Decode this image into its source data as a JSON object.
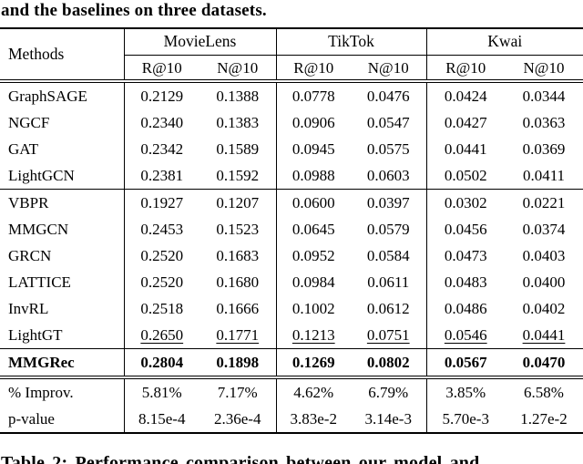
{
  "caption_top": "and the baselines on three datasets.",
  "caption_bottom": "Table 2: Performance comparison between our model and",
  "colors": {
    "text": "#000000",
    "background": "#ffffff",
    "rules": "#000000"
  },
  "table": {
    "methods_header": "Methods",
    "groups": [
      {
        "label": "MovieLens"
      },
      {
        "label": "TikTok"
      },
      {
        "label": "Kwai"
      }
    ],
    "subheaders": [
      "R@10",
      "N@10",
      "R@10",
      "N@10",
      "R@10",
      "N@10"
    ],
    "rows": [
      {
        "method": "GraphSAGE",
        "values": [
          "0.2129",
          "0.1388",
          "0.0778",
          "0.0476",
          "0.0424",
          "0.0344"
        ]
      },
      {
        "method": "NGCF",
        "values": [
          "0.2340",
          "0.1383",
          "0.0906",
          "0.0547",
          "0.0427",
          "0.0363"
        ]
      },
      {
        "method": "GAT",
        "values": [
          "0.2342",
          "0.1589",
          "0.0945",
          "0.0575",
          "0.0441",
          "0.0369"
        ]
      },
      {
        "method": "LightGCN",
        "values": [
          "0.2381",
          "0.1592",
          "0.0988",
          "0.0603",
          "0.0502",
          "0.0411"
        ]
      },
      {
        "method": "VBPR",
        "values": [
          "0.1927",
          "0.1207",
          "0.0600",
          "0.0397",
          "0.0302",
          "0.0221"
        ]
      },
      {
        "method": "MMGCN",
        "values": [
          "0.2453",
          "0.1523",
          "0.0645",
          "0.0579",
          "0.0456",
          "0.0374"
        ]
      },
      {
        "method": "GRCN",
        "values": [
          "0.2520",
          "0.1683",
          "0.0952",
          "0.0584",
          "0.0473",
          "0.0403"
        ]
      },
      {
        "method": "LATTICE",
        "values": [
          "0.2520",
          "0.1680",
          "0.0984",
          "0.0611",
          "0.0483",
          "0.0400"
        ]
      },
      {
        "method": "InvRL",
        "values": [
          "0.2518",
          "0.1666",
          "0.1002",
          "0.0612",
          "0.0486",
          "0.0402"
        ]
      },
      {
        "method": "LightGT",
        "values": [
          "0.2650",
          "0.1771",
          "0.1213",
          "0.0751",
          "0.0546",
          "0.0441"
        ]
      },
      {
        "method": "MMGRec",
        "values": [
          "0.2804",
          "0.1898",
          "0.1269",
          "0.0802",
          "0.0567",
          "0.0470"
        ]
      },
      {
        "method": "% Improv.",
        "values": [
          "5.81%",
          "7.17%",
          "4.62%",
          "6.79%",
          "3.85%",
          "6.58%"
        ]
      },
      {
        "method": "p-value",
        "values": [
          "8.15e-4",
          "2.36e-4",
          "3.83e-2",
          "3.14e-3",
          "5.70e-3",
          "1.27e-2"
        ]
      }
    ]
  }
}
